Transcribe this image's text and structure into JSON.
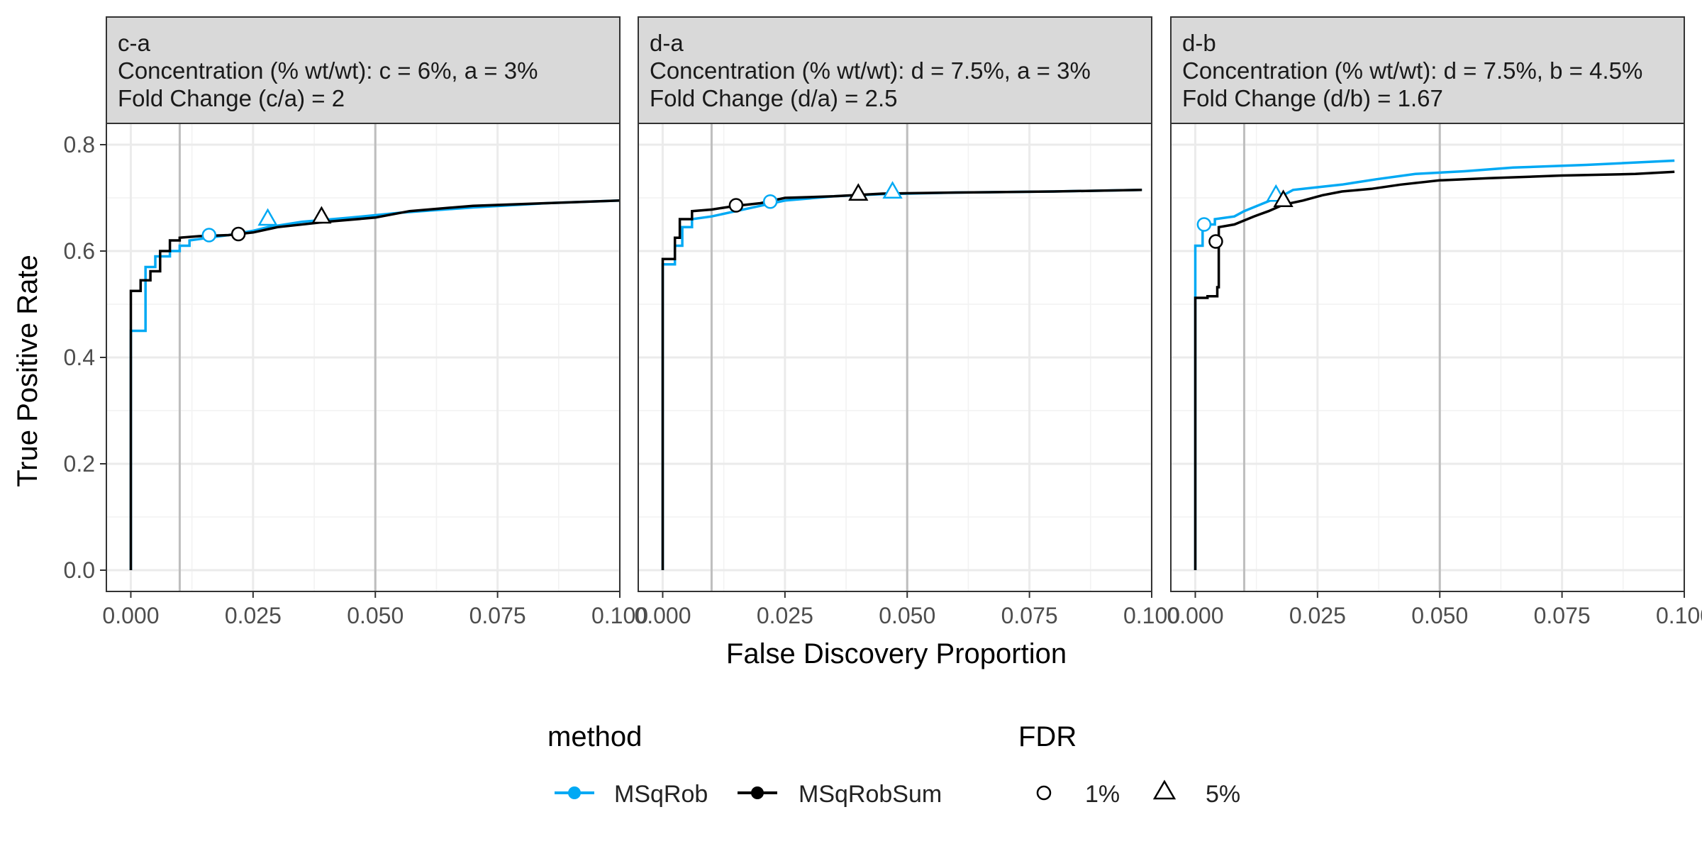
{
  "chart_data": {
    "type": "line",
    "xlabel": "False Discovery Proportion",
    "ylabel": "True Positive Rate",
    "xlim": [
      -0.005,
      0.1
    ],
    "ylim": [
      -0.04,
      0.84
    ],
    "x_ticks": [
      0,
      0.025,
      0.05,
      0.075,
      0.1
    ],
    "x_tick_labels": [
      "0.000",
      "0.025",
      "0.050",
      "0.075",
      "0.100"
    ],
    "y_ticks": [
      0,
      0.2,
      0.4,
      0.6,
      0.8
    ],
    "y_tick_labels": [
      "0.0",
      "0.2",
      "0.4",
      "0.6",
      "0.8"
    ],
    "reference_lines_x": [
      0.01,
      0.05
    ],
    "grid": true,
    "legend_position": "bottom",
    "legend": {
      "method_title": "method",
      "fdr_title": "FDR",
      "methods": [
        {
          "name": "MSqRob",
          "color": "#00A9F4"
        },
        {
          "name": "MSqRobSum",
          "color": "#000000"
        }
      ],
      "fdr_levels": [
        {
          "label": "1%",
          "shape": "circle"
        },
        {
          "label": "5%",
          "shape": "triangle"
        }
      ]
    },
    "panels": [
      {
        "strip": [
          "c-a",
          "Concentration (% wt/wt): c = 6%, a = 3%",
          "Fold Change (c/a) = 2"
        ],
        "series": [
          {
            "name": "MSqRob",
            "color": "#00A9F4",
            "points": [
              [
                0,
                0
              ],
              [
                0,
                0.45
              ],
              [
                0.003,
                0.45
              ],
              [
                0.003,
                0.57
              ],
              [
                0.005,
                0.57
              ],
              [
                0.005,
                0.59
              ],
              [
                0.008,
                0.59
              ],
              [
                0.008,
                0.6
              ],
              [
                0.01,
                0.6
              ],
              [
                0.01,
                0.61
              ],
              [
                0.012,
                0.61
              ],
              [
                0.012,
                0.62
              ],
              [
                0.016,
                0.625
              ],
              [
                0.02,
                0.63
              ],
              [
                0.025,
                0.638
              ],
              [
                0.028,
                0.645
              ],
              [
                0.035,
                0.655
              ],
              [
                0.045,
                0.663
              ],
              [
                0.055,
                0.672
              ],
              [
                0.07,
                0.682
              ],
              [
                0.085,
                0.69
              ],
              [
                0.1,
                0.695
              ]
            ],
            "fdr_markers": [
              {
                "level": "1%",
                "x": 0.016,
                "y": 0.63
              },
              {
                "level": "5%",
                "x": 0.028,
                "y": 0.66
              }
            ]
          },
          {
            "name": "MSqRobSum",
            "color": "#000000",
            "points": [
              [
                0,
                0
              ],
              [
                0,
                0.525
              ],
              [
                0.002,
                0.525
              ],
              [
                0.002,
                0.545
              ],
              [
                0.004,
                0.545
              ],
              [
                0.004,
                0.562
              ],
              [
                0.006,
                0.562
              ],
              [
                0.006,
                0.6
              ],
              [
                0.008,
                0.6
              ],
              [
                0.008,
                0.62
              ],
              [
                0.01,
                0.62
              ],
              [
                0.01,
                0.625
              ],
              [
                0.014,
                0.628
              ],
              [
                0.02,
                0.63
              ],
              [
                0.025,
                0.635
              ],
              [
                0.03,
                0.645
              ],
              [
                0.04,
                0.655
              ],
              [
                0.05,
                0.663
              ],
              [
                0.057,
                0.675
              ],
              [
                0.07,
                0.685
              ],
              [
                0.085,
                0.69
              ],
              [
                0.1,
                0.695
              ]
            ],
            "fdr_markers": [
              {
                "level": "1%",
                "x": 0.022,
                "y": 0.632
              },
              {
                "level": "5%",
                "x": 0.039,
                "y": 0.664
              }
            ]
          }
        ]
      },
      {
        "strip": [
          "d-a",
          "Concentration (% wt/wt): d = 7.5%, a = 3%",
          "Fold Change (d/a) = 2.5"
        ],
        "series": [
          {
            "name": "MSqRob",
            "color": "#00A9F4",
            "points": [
              [
                0,
                0
              ],
              [
                0,
                0.575
              ],
              [
                0.0025,
                0.575
              ],
              [
                0.0025,
                0.61
              ],
              [
                0.004,
                0.61
              ],
              [
                0.004,
                0.645
              ],
              [
                0.006,
                0.645
              ],
              [
                0.006,
                0.66
              ],
              [
                0.01,
                0.665
              ],
              [
                0.015,
                0.675
              ],
              [
                0.02,
                0.685
              ],
              [
                0.025,
                0.695
              ],
              [
                0.035,
                0.703
              ],
              [
                0.045,
                0.707
              ],
              [
                0.06,
                0.71
              ],
              [
                0.08,
                0.712
              ],
              [
                0.098,
                0.715
              ]
            ],
            "fdr_markers": [
              {
                "level": "1%",
                "x": 0.022,
                "y": 0.693
              },
              {
                "level": "5%",
                "x": 0.047,
                "y": 0.711
              }
            ]
          },
          {
            "name": "MSqRobSum",
            "color": "#000000",
            "points": [
              [
                0,
                0
              ],
              [
                0,
                0.585
              ],
              [
                0.0025,
                0.585
              ],
              [
                0.0025,
                0.625
              ],
              [
                0.0035,
                0.625
              ],
              [
                0.0035,
                0.66
              ],
              [
                0.006,
                0.66
              ],
              [
                0.006,
                0.675
              ],
              [
                0.01,
                0.678
              ],
              [
                0.015,
                0.685
              ],
              [
                0.02,
                0.69
              ],
              [
                0.025,
                0.7
              ],
              [
                0.035,
                0.703
              ],
              [
                0.045,
                0.708
              ],
              [
                0.06,
                0.71
              ],
              [
                0.08,
                0.712
              ],
              [
                0.098,
                0.715
              ]
            ],
            "fdr_markers": [
              {
                "level": "1%",
                "x": 0.015,
                "y": 0.686
              },
              {
                "level": "5%",
                "x": 0.04,
                "y": 0.707
              }
            ]
          }
        ]
      },
      {
        "strip": [
          "d-b",
          "Concentration (% wt/wt): d = 7.5%, b = 4.5%",
          "Fold Change (d/b) = 1.67"
        ],
        "series": [
          {
            "name": "MSqRob",
            "color": "#00A9F4",
            "points": [
              [
                0,
                0
              ],
              [
                0,
                0.61
              ],
              [
                0.0015,
                0.61
              ],
              [
                0.0015,
                0.65
              ],
              [
                0.004,
                0.65
              ],
              [
                0.004,
                0.66
              ],
              [
                0.008,
                0.665
              ],
              [
                0.01,
                0.675
              ],
              [
                0.014,
                0.69
              ],
              [
                0.018,
                0.705
              ],
              [
                0.02,
                0.715
              ],
              [
                0.025,
                0.72
              ],
              [
                0.03,
                0.725
              ],
              [
                0.037,
                0.735
              ],
              [
                0.045,
                0.745
              ],
              [
                0.055,
                0.75
              ],
              [
                0.065,
                0.757
              ],
              [
                0.08,
                0.762
              ],
              [
                0.098,
                0.77
              ]
            ],
            "fdr_markers": [
              {
                "level": "1%",
                "x": 0.0018,
                "y": 0.65
              },
              {
                "level": "5%",
                "x": 0.0165,
                "y": 0.705
              }
            ]
          },
          {
            "name": "MSqRobSum",
            "color": "#000000",
            "points": [
              [
                0,
                0
              ],
              [
                0,
                0.512
              ],
              [
                0.0025,
                0.512
              ],
              [
                0.0025,
                0.515
              ],
              [
                0.0045,
                0.515
              ],
              [
                0.0045,
                0.532
              ],
              [
                0.0048,
                0.532
              ],
              [
                0.0048,
                0.645
              ],
              [
                0.008,
                0.65
              ],
              [
                0.012,
                0.665
              ],
              [
                0.015,
                0.675
              ],
              [
                0.018,
                0.687
              ],
              [
                0.022,
                0.695
              ],
              [
                0.026,
                0.705
              ],
              [
                0.03,
                0.712
              ],
              [
                0.036,
                0.717
              ],
              [
                0.042,
                0.725
              ],
              [
                0.05,
                0.733
              ],
              [
                0.06,
                0.737
              ],
              [
                0.075,
                0.742
              ],
              [
                0.09,
                0.745
              ],
              [
                0.098,
                0.749
              ]
            ],
            "fdr_markers": [
              {
                "level": "1%",
                "x": 0.0042,
                "y": 0.618
              },
              {
                "level": "5%",
                "x": 0.018,
                "y": 0.695
              }
            ]
          }
        ]
      }
    ]
  }
}
